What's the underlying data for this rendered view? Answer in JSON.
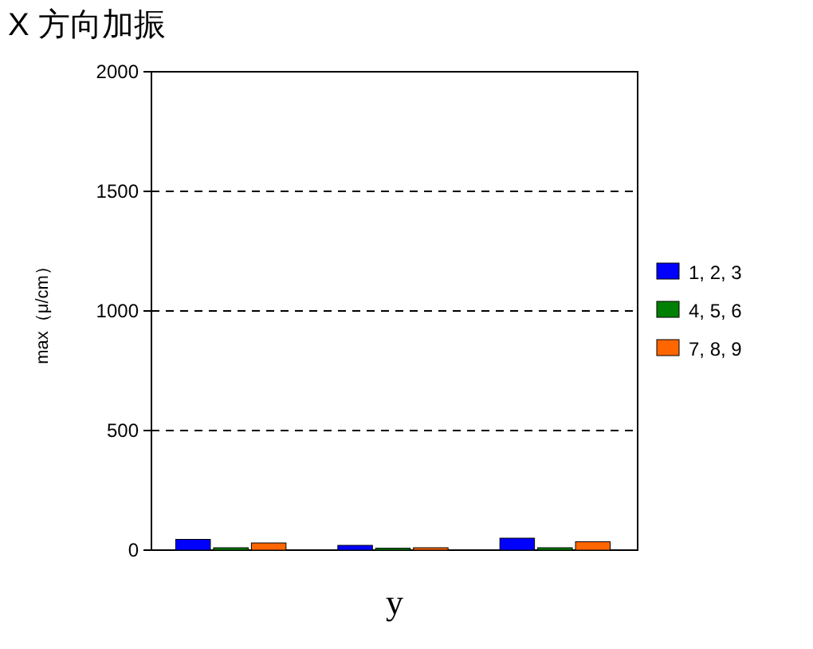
{
  "chart_data": {
    "type": "bar",
    "title": "X 方向加振",
    "xlabel": "y",
    "ylabel": "max（μ/cm）",
    "categories": [
      null,
      null,
      null
    ],
    "series": [
      {
        "name": "1, 2, 3",
        "color": "#0000ff",
        "values": [
          45,
          20,
          50
        ]
      },
      {
        "name": "4, 5, 6",
        "color": "#008000",
        "values": [
          10,
          8,
          10
        ]
      },
      {
        "name": "7, 8, 9",
        "color": "#ff6600",
        "values": [
          30,
          10,
          35
        ]
      }
    ],
    "ylim": [
      0,
      2000
    ],
    "yticks": [
      0,
      500,
      1000,
      1500,
      2000
    ],
    "grid": "y",
    "legend": "right"
  }
}
